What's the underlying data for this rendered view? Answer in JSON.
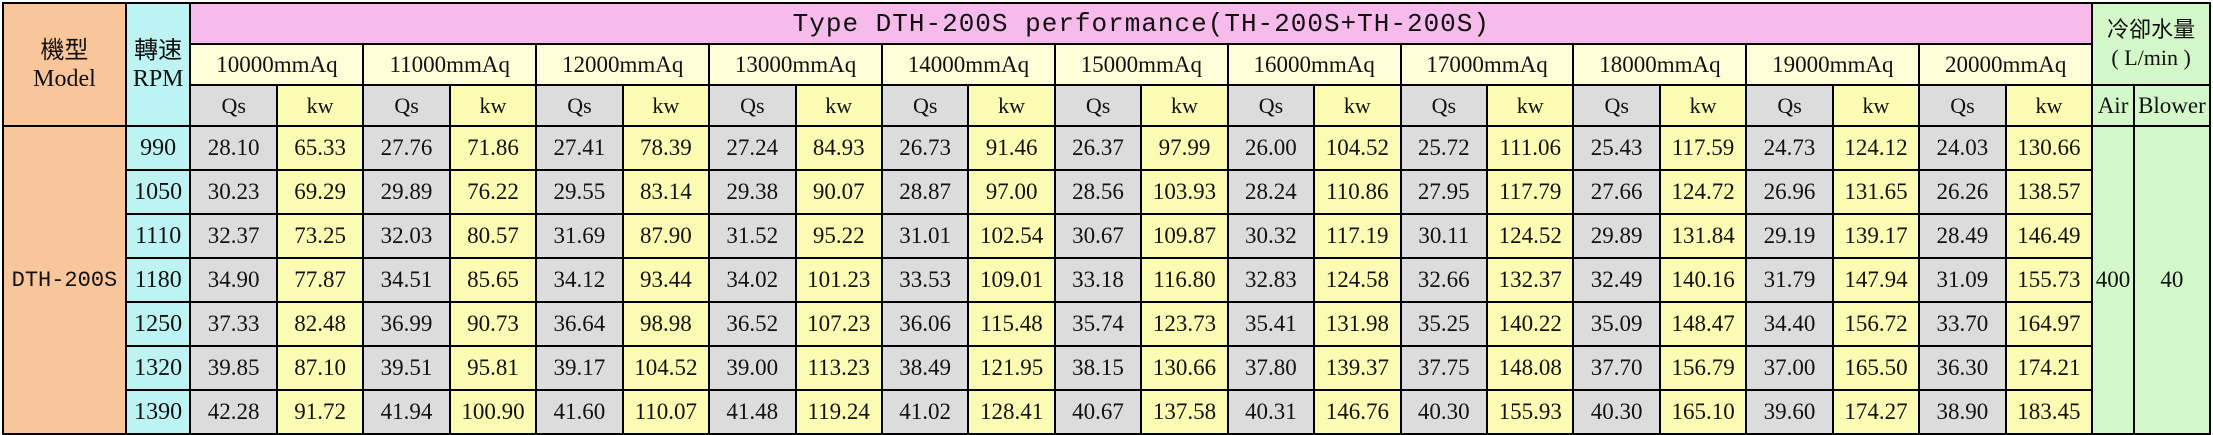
{
  "header": {
    "model_zh": "機型",
    "model_en": "Model",
    "speed_zh": "轉速",
    "speed_en": "RPM",
    "title": "Type DTH-200S performance(TH-200S+TH-200S)",
    "cooling_zh": "冷卻水量",
    "cooling_unit": "( L/min )",
    "air_label": "Air",
    "blower_label": "Blower",
    "unit_q": "Qs",
    "unit_k": "kw"
  },
  "pressures": [
    "10000mmAq",
    "11000mmAq",
    "12000mmAq",
    "13000mmAq",
    "14000mmAq",
    "15000mmAq",
    "16000mmAq",
    "17000mmAq",
    "18000mmAq",
    "19000mmAq",
    "20000mmAq"
  ],
  "model_name": "DTH-200S",
  "cooling": {
    "air": "400",
    "blower": "40"
  },
  "rows": [
    {
      "rpm": "990",
      "cells": [
        "28.10",
        "65.33",
        "27.76",
        "71.86",
        "27.41",
        "78.39",
        "27.24",
        "84.93",
        "26.73",
        "91.46",
        "26.37",
        "97.99",
        "26.00",
        "104.52",
        "25.72",
        "111.06",
        "25.43",
        "117.59",
        "24.73",
        "124.12",
        "24.03",
        "130.66"
      ]
    },
    {
      "rpm": "1050",
      "cells": [
        "30.23",
        "69.29",
        "29.89",
        "76.22",
        "29.55",
        "83.14",
        "29.38",
        "90.07",
        "28.87",
        "97.00",
        "28.56",
        "103.93",
        "28.24",
        "110.86",
        "27.95",
        "117.79",
        "27.66",
        "124.72",
        "26.96",
        "131.65",
        "26.26",
        "138.57"
      ]
    },
    {
      "rpm": "1110",
      "cells": [
        "32.37",
        "73.25",
        "32.03",
        "80.57",
        "31.69",
        "87.90",
        "31.52",
        "95.22",
        "31.01",
        "102.54",
        "30.67",
        "109.87",
        "30.32",
        "117.19",
        "30.11",
        "124.52",
        "29.89",
        "131.84",
        "29.19",
        "139.17",
        "28.49",
        "146.49"
      ]
    },
    {
      "rpm": "1180",
      "cells": [
        "34.90",
        "77.87",
        "34.51",
        "85.65",
        "34.12",
        "93.44",
        "34.02",
        "101.23",
        "33.53",
        "109.01",
        "33.18",
        "116.80",
        "32.83",
        "124.58",
        "32.66",
        "132.37",
        "32.49",
        "140.16",
        "31.79",
        "147.94",
        "31.09",
        "155.73"
      ]
    },
    {
      "rpm": "1250",
      "cells": [
        "37.33",
        "82.48",
        "36.99",
        "90.73",
        "36.64",
        "98.98",
        "36.52",
        "107.23",
        "36.06",
        "115.48",
        "35.74",
        "123.73",
        "35.41",
        "131.98",
        "35.25",
        "140.22",
        "35.09",
        "148.47",
        "34.40",
        "156.72",
        "33.70",
        "164.97"
      ]
    },
    {
      "rpm": "1320",
      "cells": [
        "39.85",
        "87.10",
        "39.51",
        "95.81",
        "39.17",
        "104.52",
        "39.00",
        "113.23",
        "38.49",
        "121.95",
        "38.15",
        "130.66",
        "37.80",
        "139.37",
        "37.75",
        "148.08",
        "37.70",
        "156.79",
        "37.00",
        "165.50",
        "36.30",
        "174.21"
      ]
    },
    {
      "rpm": "1390",
      "cells": [
        "42.28",
        "91.72",
        "41.94",
        "100.90",
        "41.60",
        "110.07",
        "41.48",
        "119.24",
        "41.02",
        "128.41",
        "40.67",
        "137.58",
        "40.31",
        "146.76",
        "40.30",
        "155.93",
        "40.30",
        "165.10",
        "39.60",
        "174.27",
        "38.90",
        "183.45"
      ]
    }
  ]
}
